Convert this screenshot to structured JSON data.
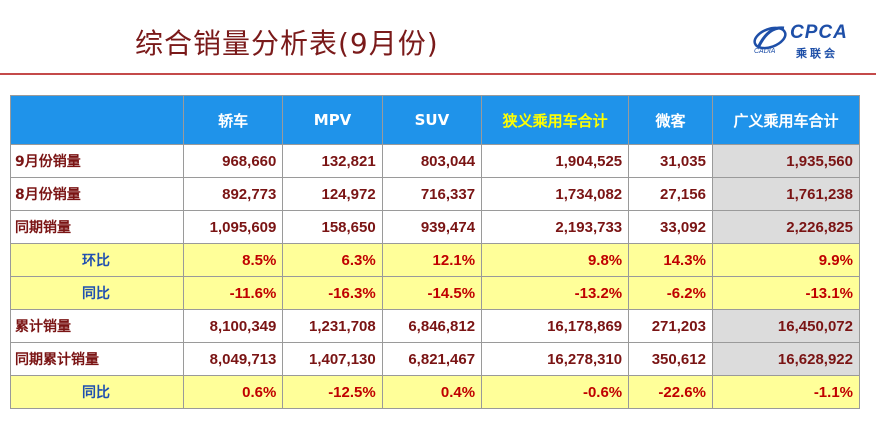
{
  "title": "综合销量分析表(9月份)",
  "logo": {
    "brand": "CPCA",
    "brand_cn": "乘联会",
    "sub": "CADIA"
  },
  "colors": {
    "header_bg": "#1f93ea",
    "highlight_header_text": "#ffff00",
    "ratio_row_bg": "#ffff99",
    "value_text": "#7a1414"
  },
  "table": {
    "columns": [
      "",
      "轿车",
      "MPV",
      "SUV",
      "狭义乘用车合计",
      "微客",
      "广义乘用车合计"
    ],
    "rows": [
      {
        "label": "9月份销量",
        "values": [
          "968,660",
          "132,821",
          "803,044",
          "1,904,525",
          "31,035",
          "1,935,560"
        ]
      },
      {
        "label": "8月份销量",
        "values": [
          "892,773",
          "124,972",
          "716,337",
          "1,734,082",
          "27,156",
          "1,761,238"
        ]
      },
      {
        "label": "同期销量",
        "values": [
          "1,095,609",
          "158,650",
          "939,474",
          "2,193,733",
          "33,092",
          "2,226,825"
        ]
      },
      {
        "label": "环比",
        "values": [
          "8.5%",
          "6.3%",
          "12.1%",
          "9.8%",
          "14.3%",
          "9.9%"
        ]
      },
      {
        "label": "同比",
        "values": [
          "-11.6%",
          "-16.3%",
          "-14.5%",
          "-13.2%",
          "-6.2%",
          "-13.1%"
        ]
      },
      {
        "label": "累计销量",
        "values": [
          "8,100,349",
          "1,231,708",
          "6,846,812",
          "16,178,869",
          "271,203",
          "16,450,072"
        ]
      },
      {
        "label": "同期累计销量",
        "values": [
          "8,049,713",
          "1,407,130",
          "6,821,467",
          "16,278,310",
          "350,612",
          "16,628,922"
        ]
      },
      {
        "label": "同比",
        "values": [
          "0.6%",
          "-12.5%",
          "0.4%",
          "-0.6%",
          "-22.6%",
          "-1.1%"
        ]
      }
    ]
  }
}
